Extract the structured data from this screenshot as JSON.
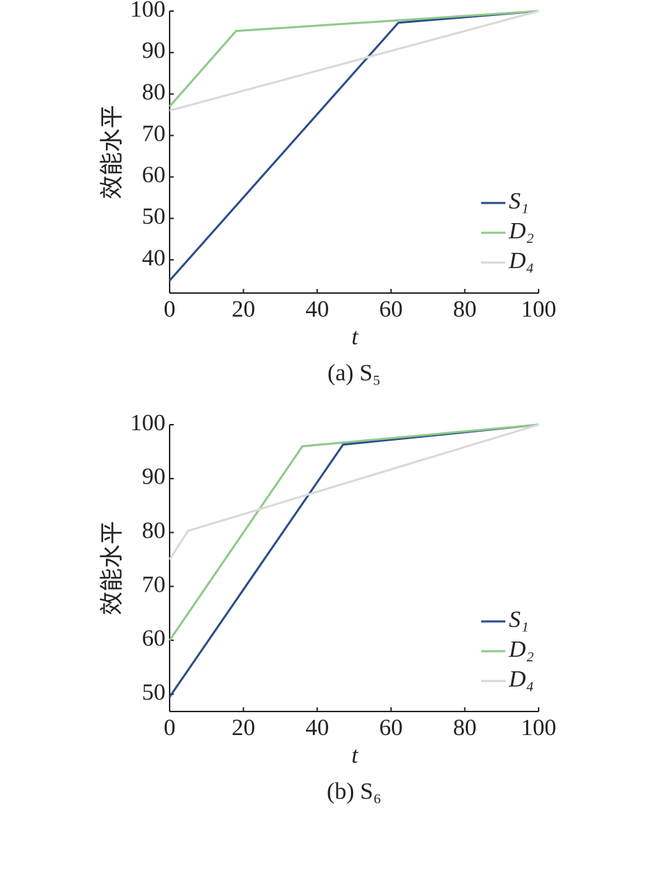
{
  "chart_data": [
    {
      "type": "line",
      "caption": "(a) S₅",
      "ylabel": "效能水平",
      "xlabel": "t",
      "xlim": [
        0,
        100
      ],
      "xticks": [
        0,
        20,
        40,
        60,
        80,
        100
      ],
      "ylim": [
        32,
        100
      ],
      "yticks": [
        40,
        50,
        60,
        70,
        80,
        90,
        100
      ],
      "grid": false,
      "legend": "lower right",
      "series": [
        {
          "name": "S₁",
          "color": "#2b4c8c",
          "x": [
            0,
            62,
            100
          ],
          "values": [
            35,
            97.2,
            100
          ]
        },
        {
          "name": "D₂",
          "color": "#8fc98a",
          "x": [
            0,
            18,
            100
          ],
          "values": [
            77,
            95.2,
            100
          ]
        },
        {
          "name": "D₄",
          "color": "#d9d9d9",
          "x": [
            0,
            100
          ],
          "values": [
            76,
            100
          ]
        }
      ]
    },
    {
      "type": "line",
      "caption": "(b) S₆",
      "ylabel": "效能水平",
      "xlabel": "t",
      "xlim": [
        0,
        100
      ],
      "xticks": [
        0,
        20,
        40,
        60,
        80,
        100
      ],
      "ylim": [
        46.8,
        100
      ],
      "yticks": [
        50,
        60,
        70,
        80,
        90,
        100
      ],
      "grid": false,
      "legend": "lower right",
      "series": [
        {
          "name": "S₁",
          "color": "#2b4c8c",
          "x": [
            0,
            47,
            100
          ],
          "values": [
            49.5,
            96.3,
            100
          ]
        },
        {
          "name": "D₂",
          "color": "#8fc98a",
          "x": [
            0,
            36,
            100
          ],
          "values": [
            60,
            96,
            100
          ]
        },
        {
          "name": "D₄",
          "color": "#d9d9d9",
          "x": [
            0,
            5,
            100
          ],
          "values": [
            75,
            80.3,
            100
          ]
        }
      ]
    }
  ]
}
